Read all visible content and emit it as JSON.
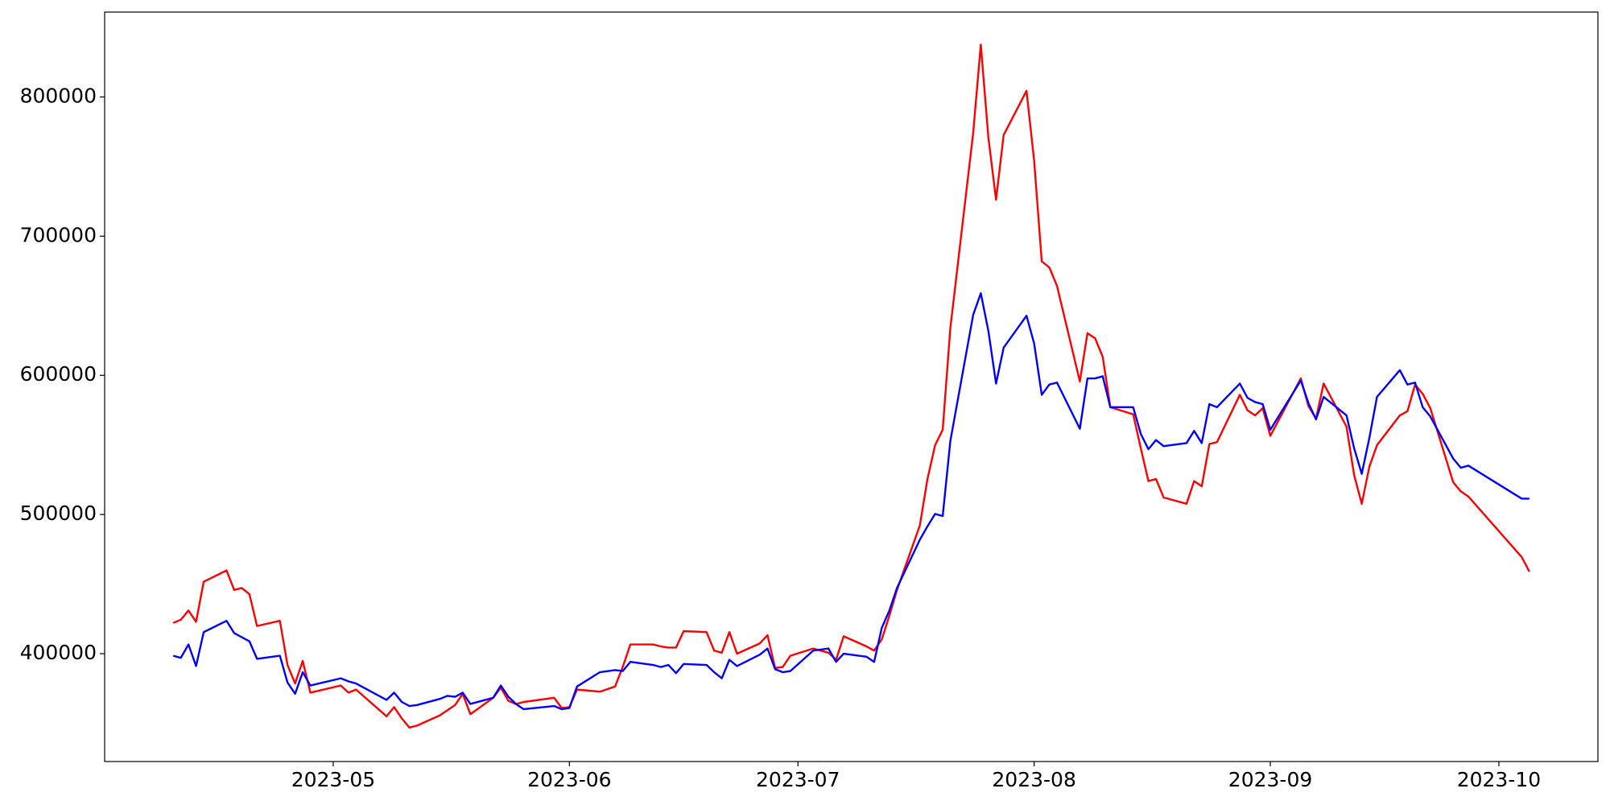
{
  "chart_data": {
    "type": "line",
    "x": [
      "2023-04-10",
      "2023-04-11",
      "2023-04-12",
      "2023-04-13",
      "2023-04-14",
      "2023-04-17",
      "2023-04-18",
      "2023-04-19",
      "2023-04-20",
      "2023-04-21",
      "2023-04-24",
      "2023-04-25",
      "2023-04-26",
      "2023-04-27",
      "2023-04-28",
      "2023-05-02",
      "2023-05-03",
      "2023-05-04",
      "2023-05-08",
      "2023-05-09",
      "2023-05-10",
      "2023-05-11",
      "2023-05-12",
      "2023-05-15",
      "2023-05-16",
      "2023-05-17",
      "2023-05-18",
      "2023-05-19",
      "2023-05-22",
      "2023-05-23",
      "2023-05-24",
      "2023-05-25",
      "2023-05-26",
      "2023-05-30",
      "2023-05-31",
      "2023-06-01",
      "2023-06-02",
      "2023-06-05",
      "2023-06-07",
      "2023-06-08",
      "2023-06-09",
      "2023-06-12",
      "2023-06-13",
      "2023-06-14",
      "2023-06-15",
      "2023-06-16",
      "2023-06-19",
      "2023-06-20",
      "2023-06-21",
      "2023-06-22",
      "2023-06-23",
      "2023-06-26",
      "2023-06-27",
      "2023-06-28",
      "2023-06-29",
      "2023-06-30",
      "2023-07-03",
      "2023-07-05",
      "2023-07-06",
      "2023-07-07",
      "2023-07-10",
      "2023-07-11",
      "2023-07-12",
      "2023-07-13",
      "2023-07-14",
      "2023-07-17",
      "2023-07-18",
      "2023-07-19",
      "2023-07-20",
      "2023-07-21",
      "2023-07-24",
      "2023-07-25",
      "2023-07-26",
      "2023-07-27",
      "2023-07-28",
      "2023-07-31",
      "2023-08-01",
      "2023-08-02",
      "2023-08-03",
      "2023-08-04",
      "2023-08-07",
      "2023-08-08",
      "2023-08-09",
      "2023-08-10",
      "2023-08-11",
      "2023-08-14",
      "2023-08-15",
      "2023-08-16",
      "2023-08-17",
      "2023-08-18",
      "2023-08-21",
      "2023-08-22",
      "2023-08-23",
      "2023-08-24",
      "2023-08-25",
      "2023-08-28",
      "2023-08-29",
      "2023-08-30",
      "2023-08-31",
      "2023-09-01",
      "2023-09-05",
      "2023-09-06",
      "2023-09-07",
      "2023-09-08",
      "2023-09-11",
      "2023-09-12",
      "2023-09-13",
      "2023-09-14",
      "2023-09-15",
      "2023-09-18",
      "2023-09-19",
      "2023-09-20",
      "2023-09-21",
      "2023-09-22",
      "2023-09-25",
      "2023-09-26",
      "2023-09-27",
      "2023-10-04",
      "2023-10-05"
    ],
    "series": [
      {
        "color": "#ff0000",
        "values": [
          422100,
          424400,
          431000,
          422900,
          451700,
          459800,
          445800,
          447200,
          442800,
          419900,
          423600,
          391900,
          378600,
          394800,
          372000,
          377100,
          372000,
          374200,
          355000,
          361600,
          353500,
          346900,
          348300,
          355700,
          359400,
          363100,
          371200,
          356500,
          368300,
          375600,
          366100,
          363800,
          365300,
          368300,
          360900,
          361600,
          374200,
          372700,
          376400,
          390400,
          406600,
          406600,
          405200,
          404400,
          404400,
          416200,
          415500,
          402200,
          400700,
          415500,
          400000,
          407400,
          413300,
          389700,
          390400,
          398500,
          403700,
          400700,
          395600,
          412500,
          405200,
          402200,
          410300,
          427300,
          445800,
          492200,
          525500,
          549800,
          560900,
          633900,
          774200,
          837600,
          770500,
          726200,
          772700,
          804400,
          754200,
          681900,
          677500,
          664200,
          595600,
          630300,
          626600,
          613300,
          577100,
          572000,
          547600,
          524000,
          525500,
          512200,
          507700,
          524000,
          520300,
          550600,
          552000,
          586000,
          574900,
          571200,
          576400,
          556500,
          597800,
          577900,
          569000,
          594100,
          563100,
          528400,
          507700,
          534300,
          549800,
          571200,
          574200,
          593400,
          586700,
          576400,
          523200,
          516600,
          512900,
          469400,
          459000
        ]
      },
      {
        "color": "#0000ff",
        "values": [
          398500,
          397000,
          406600,
          391100,
          415500,
          423600,
          414800,
          411800,
          408900,
          396300,
          398500,
          379300,
          371200,
          386700,
          377100,
          382300,
          380100,
          378600,
          366800,
          372000,
          365300,
          362400,
          363100,
          367500,
          369700,
          369000,
          372000,
          363900,
          368300,
          377100,
          369000,
          363800,
          360100,
          362400,
          360100,
          360900,
          376400,
          386700,
          388200,
          387500,
          394100,
          391900,
          390400,
          391900,
          386000,
          392600,
          391900,
          386700,
          382300,
          395600,
          391100,
          399300,
          403700,
          388900,
          386700,
          387500,
          402200,
          403700,
          394100,
          400000,
          397800,
          394100,
          418500,
          431000,
          447200,
          481900,
          491500,
          500400,
          498900,
          552800,
          643500,
          659000,
          631700,
          594100,
          619900,
          642800,
          622900,
          586000,
          593400,
          594800,
          561600,
          597800,
          597800,
          599300,
          577100,
          577100,
          557900,
          546900,
          553500,
          549100,
          551300,
          560100,
          551300,
          579300,
          577100,
          594100,
          583800,
          580800,
          579300,
          560900,
          596300,
          580100,
          568300,
          584500,
          571200,
          547600,
          529200,
          555000,
          584500,
          603700,
          593400,
          594800,
          577100,
          570400,
          540200,
          533600,
          535100,
          511400,
          511400
        ]
      }
    ],
    "xlim": [
      "2023-04-01",
      "2023-10-14"
    ],
    "xticks": [
      {
        "value": "2023-05-01",
        "label": "2023-05"
      },
      {
        "value": "2023-06-01",
        "label": "2023-06"
      },
      {
        "value": "2023-07-01",
        "label": "2023-07"
      },
      {
        "value": "2023-08-01",
        "label": "2023-08"
      },
      {
        "value": "2023-09-01",
        "label": "2023-09"
      },
      {
        "value": "2023-10-01",
        "label": "2023-10"
      }
    ],
    "ylim": [
      322500,
      861000
    ],
    "yticks": [
      400000,
      500000,
      600000,
      700000,
      800000
    ]
  }
}
